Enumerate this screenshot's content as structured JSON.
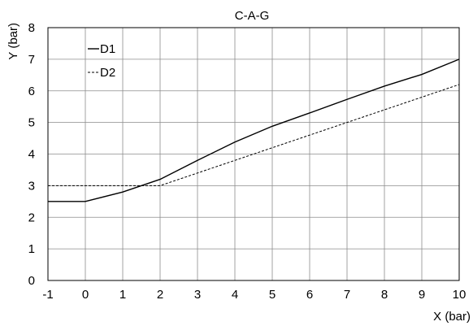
{
  "chart_data": {
    "type": "line",
    "title": "C-A-G",
    "xlabel": "X (bar)",
    "ylabel": "Y (bar)",
    "xlim": [
      -1,
      10
    ],
    "ylim": [
      0,
      8
    ],
    "xticks": [
      -1,
      0,
      1,
      2,
      3,
      4,
      5,
      6,
      7,
      8,
      9,
      10
    ],
    "yticks": [
      0,
      1,
      2,
      3,
      4,
      5,
      6,
      7,
      8
    ],
    "grid": true,
    "legend": "top-left",
    "series": [
      {
        "name": "D1",
        "style": "solid",
        "color": "#000000",
        "points": [
          [
            -1,
            2.5
          ],
          [
            0,
            2.5
          ],
          [
            1,
            2.8
          ],
          [
            2,
            3.2
          ],
          [
            3,
            3.8
          ],
          [
            4,
            4.38
          ],
          [
            5,
            4.88
          ],
          [
            6,
            5.3
          ],
          [
            7,
            5.73
          ],
          [
            8,
            6.15
          ],
          [
            9,
            6.52
          ],
          [
            10,
            7.0
          ]
        ]
      },
      {
        "name": "D2",
        "style": "dashed",
        "color": "#000000",
        "points": [
          [
            -1,
            3.0
          ],
          [
            2,
            3.0
          ],
          [
            10,
            6.2
          ]
        ]
      }
    ]
  }
}
